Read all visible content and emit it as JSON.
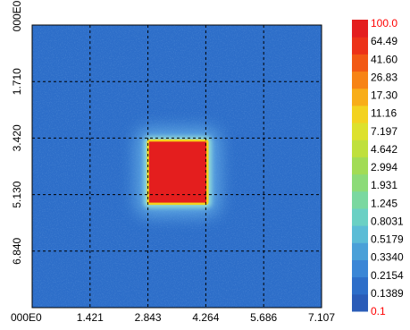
{
  "chart_data": {
    "type": "heatmap",
    "title": "",
    "xlabel": "",
    "ylabel": "",
    "x_ticks": [
      "000E0",
      "1.421",
      "2.843",
      "4.264",
      "5.686",
      "7.107"
    ],
    "y_ticks": [
      "000E0",
      "1.710",
      "3.420",
      "5.130",
      "6.840"
    ],
    "x_range": [
      0,
      7.107
    ],
    "y_range": [
      0,
      8.55
    ],
    "y_axis_inverted": true,
    "grid": true,
    "grid_style": "dashed",
    "background_level": 0.2,
    "hot_region": {
      "x_range": [
        2.85,
        4.3
      ],
      "y_range": [
        3.5,
        5.4
      ],
      "level": 100.0
    },
    "colorbar": {
      "scale": "log",
      "position": "right",
      "min": 0.1,
      "max": 100.0,
      "labels": [
        "100.0",
        "64.49",
        "41.60",
        "26.83",
        "17.30",
        "11.16",
        "7.197",
        "4.642",
        "2.994",
        "1.931",
        "1.245",
        "0.8031",
        "0.5179",
        "0.3340",
        "0.2154",
        "0.1389",
        "0.1"
      ],
      "label_colors": [
        "#ff0000",
        "#000000",
        "#000000",
        "#000000",
        "#000000",
        "#000000",
        "#000000",
        "#000000",
        "#000000",
        "#000000",
        "#000000",
        "#000000",
        "#000000",
        "#000000",
        "#000000",
        "#000000",
        "#ff0000"
      ],
      "colors": [
        "#2a5cb8",
        "#2d6ec9",
        "#3a86d6",
        "#4aa0d8",
        "#5bbcd6",
        "#6ad0c4",
        "#7ad8a0",
        "#8cdb78",
        "#a2dc55",
        "#bfe03c",
        "#dde12c",
        "#f3d21f",
        "#f8ad18",
        "#f78315",
        "#f25914",
        "#ec3218",
        "#e41e1e"
      ]
    }
  }
}
